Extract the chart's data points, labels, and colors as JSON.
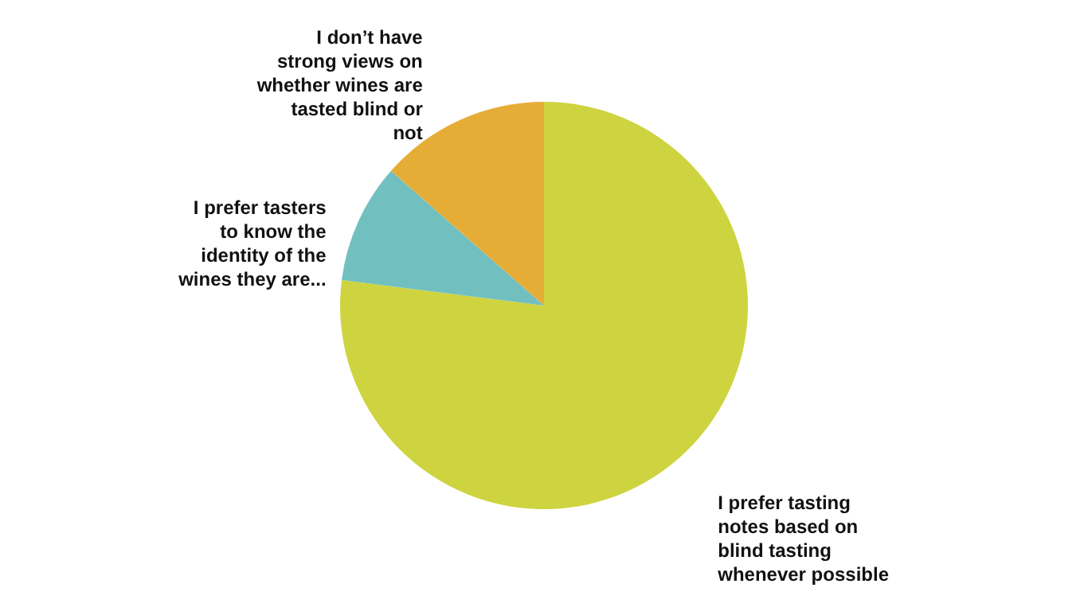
{
  "chart_data": {
    "type": "pie",
    "categories": [
      "I prefer tasting notes based on blind tasting whenever possible",
      "I prefer tasters to know the identity of the wines they are...",
      "I don’t have strong views on whether wines are tasted blind or not"
    ],
    "values": [
      77,
      9.5,
      13.5
    ],
    "colors": [
      "#cdd43f",
      "#72bfc0",
      "#e6ad36"
    ]
  }
}
